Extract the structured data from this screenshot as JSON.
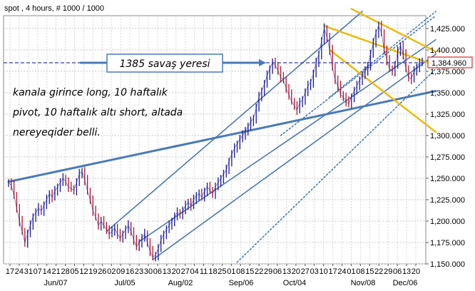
{
  "chart_data": {
    "type": "line",
    "title": "spot , 4 hours, # 1000 / 1000",
    "xlabel": "",
    "ylabel": "",
    "ylim": [
      1150,
      1440
    ],
    "y_ticks": [
      1150,
      1175,
      1200,
      1225,
      1250,
      1275,
      1300,
      1325,
      1350,
      1375,
      1400,
      1425
    ],
    "y_tick_labels": [
      "1,150.000",
      "1,175.000",
      "1,200.000",
      "1,225.000",
      "1,250.000",
      "1,275.000",
      "1,300.000",
      "1,325.000",
      "1,350.000",
      "1,375.000",
      "1,400.000",
      "1,425.000"
    ],
    "last_price": 1384.96,
    "last_price_label": "1,384.960",
    "grid": true,
    "accent_colors": {
      "price": "#1a1a99",
      "trend": "#4a7ab7",
      "resistance": "#f0b800",
      "last_price_box": "#cc0000",
      "dashed_level": "#3a3aaa"
    },
    "x_day_ticks": [
      "17",
      "24",
      "31",
      "07",
      "14",
      "21",
      "28",
      "05",
      "12",
      "19",
      "26",
      "02",
      "09",
      "16",
      "23",
      "30",
      "06",
      "13",
      "20",
      "27",
      "04",
      "11",
      "18",
      "25",
      "01",
      "08",
      "15",
      "22",
      "29",
      "06",
      "13",
      "20",
      "27",
      "03",
      "10",
      "17",
      "24",
      "01",
      "08",
      "15",
      "22",
      "29",
      "06",
      "13",
      "20"
    ],
    "x_month_labels": [
      "Jun/07",
      "Jul/05",
      "Aug/02",
      "Sep/06",
      "Oct/04",
      "Nov/08",
      "Dec/06"
    ],
    "series": [
      {
        "values": [
          1245,
          1242,
          1230,
          1215,
          1200,
          1188,
          1175,
          1185,
          1195,
          1205,
          1210,
          1215,
          1212,
          1218,
          1225,
          1232,
          1228,
          1235,
          1240,
          1245,
          1250,
          1246,
          1240,
          1238,
          1236,
          1245,
          1255,
          1258,
          1248,
          1235,
          1225,
          1212,
          1205,
          1195,
          1200,
          1195,
          1190,
          1185,
          1188,
          1192,
          1185,
          1180,
          1185,
          1190,
          1195,
          1188,
          1178,
          1170,
          1175,
          1180,
          1185,
          1175,
          1165,
          1158,
          1160,
          1168,
          1178,
          1185,
          1190,
          1195,
          1200,
          1205,
          1210,
          1208,
          1212,
          1218,
          1222,
          1218,
          1225,
          1230,
          1232,
          1228,
          1235,
          1240,
          1236,
          1232,
          1240,
          1245,
          1250,
          1255,
          1260,
          1270,
          1278,
          1285,
          1290,
          1296,
          1300,
          1306,
          1310,
          1316,
          1320,
          1332,
          1345,
          1352,
          1360,
          1370,
          1378,
          1385,
          1382,
          1376,
          1368,
          1365,
          1355,
          1348,
          1340,
          1335,
          1330,
          1338,
          1342,
          1350,
          1358,
          1362,
          1372,
          1385,
          1395,
          1410,
          1425,
          1415,
          1400,
          1380,
          1365,
          1358,
          1348,
          1345,
          1340,
          1337,
          1345,
          1352,
          1358,
          1365,
          1370,
          1375,
          1382,
          1395,
          1408,
          1420,
          1428,
          1420,
          1400,
          1388,
          1378,
          1375,
          1382,
          1398,
          1405,
          1395,
          1378,
          1368,
          1366,
          1375,
          1380,
          1385,
          1385
        ]
      }
    ],
    "channel_lines": [
      {
        "name": "trend-support",
        "from": [
          0,
          1246
        ],
        "to": [
          157,
          1352
        ]
      },
      {
        "name": "channel-upper",
        "from": [
          36,
          1188
        ],
        "to": [
          130,
          1445
        ]
      },
      {
        "name": "channel-middle",
        "from": [
          48,
          1176
        ],
        "to": [
          157,
          1412
        ]
      },
      {
        "name": "channel-lower",
        "from": [
          53,
          1155
        ],
        "to": [
          157,
          1395
        ]
      },
      {
        "name": "channel-lower-dotted",
        "from": [
          84,
          1152
        ],
        "to": [
          157,
          1378
        ]
      },
      {
        "name": "channel-outer-dotted-1",
        "from": [
          100,
          1300
        ],
        "to": [
          157,
          1440
        ]
      },
      {
        "name": "channel-outer-dotted-2",
        "from": [
          118,
          1345
        ],
        "to": [
          157,
          1445
        ]
      }
    ],
    "resistance_lines": [
      {
        "name": "resistance-upper",
        "from": [
          116,
          1428
        ],
        "to": [
          157,
          1382
        ]
      },
      {
        "name": "resistance-lower",
        "from": [
          118,
          1400
        ],
        "to": [
          157,
          1304
        ]
      },
      {
        "name": "resistance-top",
        "from": [
          126,
          1448
        ],
        "to": [
          157,
          1398
        ]
      }
    ],
    "dashed_level": 1385,
    "annotations": {
      "battle_zone": "1385 savaş yeresi",
      "note_lines": [
        "kanala girince long, 10 haftalık",
        "pivot, 10 haftalık altı short, altada",
        "nereyeqider belli."
      ]
    }
  }
}
